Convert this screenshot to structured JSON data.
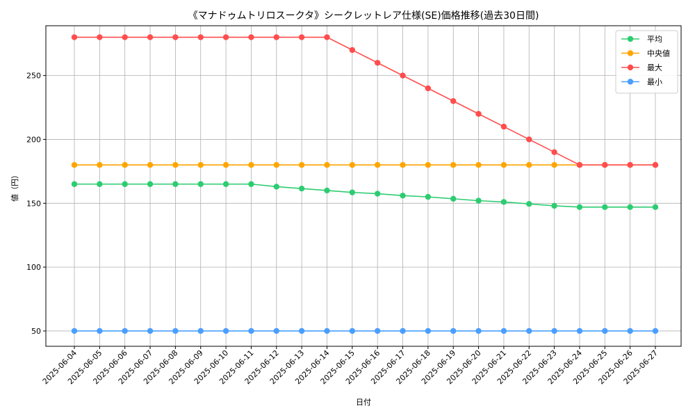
{
  "chart_data": {
    "type": "line",
    "title": "《マナドゥムトリロスークタ》シークレットレア仕様(SE)価格推移(過去30日間)",
    "xlabel": "日付",
    "ylabel": "値（円）",
    "ylim": [
      38,
      289
    ],
    "yticks": [
      50,
      100,
      150,
      200,
      250
    ],
    "grid": true,
    "legend_position": "top-right",
    "categories": [
      "2025-06-04",
      "2025-06-05",
      "2025-06-06",
      "2025-06-07",
      "2025-06-08",
      "2025-06-09",
      "2025-06-10",
      "2025-06-11",
      "2025-06-12",
      "2025-06-13",
      "2025-06-14",
      "2025-06-15",
      "2025-06-16",
      "2025-06-17",
      "2025-06-18",
      "2025-06-19",
      "2025-06-20",
      "2025-06-21",
      "2025-06-22",
      "2025-06-23",
      "2025-06-24",
      "2025-06-25",
      "2025-06-26",
      "2025-06-27"
    ],
    "series": [
      {
        "name": "平均",
        "color": "#2ecc71",
        "values": [
          165,
          165,
          165,
          165,
          165,
          165,
          165,
          165,
          163,
          161.5,
          160,
          158.5,
          157.5,
          156,
          155,
          153.5,
          152,
          151,
          149.5,
          148,
          147,
          147,
          147,
          147
        ]
      },
      {
        "name": "中央値",
        "color": "#ffa500",
        "values": [
          180,
          180,
          180,
          180,
          180,
          180,
          180,
          180,
          180,
          180,
          180,
          180,
          180,
          180,
          180,
          180,
          180,
          180,
          180,
          180,
          180,
          180,
          180,
          180
        ]
      },
      {
        "name": "最大",
        "color": "#ff4d4d",
        "values": [
          280,
          280,
          280,
          280,
          280,
          280,
          280,
          280,
          280,
          280,
          280,
          270,
          260,
          250,
          240,
          230,
          220,
          210,
          200,
          190,
          180,
          180,
          180,
          180
        ]
      },
      {
        "name": "最小",
        "color": "#4a9eff",
        "values": [
          50,
          50,
          50,
          50,
          50,
          50,
          50,
          50,
          50,
          50,
          50,
          50,
          50,
          50,
          50,
          50,
          50,
          50,
          50,
          50,
          50,
          50,
          50,
          50
        ]
      }
    ]
  }
}
